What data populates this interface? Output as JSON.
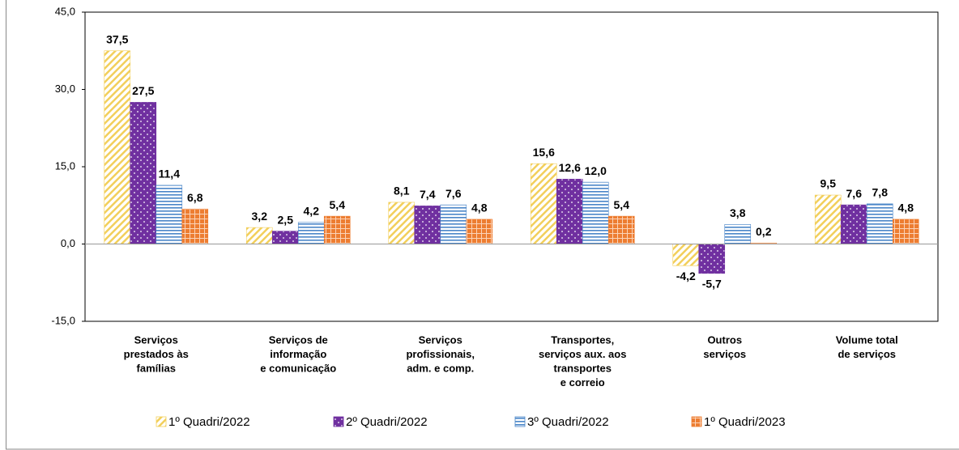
{
  "chart_data": {
    "type": "bar",
    "categories": [
      [
        "Serviços",
        "prestados às",
        "famílias"
      ],
      [
        "Serviços de",
        "informação",
        "e comunicação"
      ],
      [
        "Serviços",
        "profissionais,",
        "adm. e comp."
      ],
      [
        "Transportes,",
        "serviços aux. aos",
        "transportes",
        "e correio"
      ],
      [
        "Outros",
        "serviços"
      ],
      [
        "Volume total",
        "de serviços"
      ]
    ],
    "series": [
      {
        "name": "1º Quadri/2022",
        "color": "#f2cf5b",
        "values": [
          37.5,
          3.2,
          8.1,
          15.6,
          -4.2,
          9.5
        ],
        "value_labels": [
          "37,5",
          "3,2",
          "8,1",
          "15,6",
          "-4,2",
          "9,5"
        ]
      },
      {
        "name": "2º Quadri/2022",
        "color": "#7030a0",
        "values": [
          27.5,
          2.5,
          7.4,
          12.6,
          -5.7,
          7.6
        ],
        "value_labels": [
          "27,5",
          "2,5",
          "7,4",
          "12,6",
          "-5,7",
          "7,6"
        ]
      },
      {
        "name": "3º Quadri/2022",
        "color": "#4a86c8",
        "values": [
          11.4,
          4.2,
          7.6,
          12.0,
          3.8,
          7.8
        ],
        "value_labels": [
          "11,4",
          "4,2",
          "7,6",
          "12,0",
          "3,8",
          "7,8"
        ]
      },
      {
        "name": "1º Quadri/2023",
        "color": "#ed7d31",
        "values": [
          6.8,
          5.4,
          4.8,
          5.4,
          0.2,
          4.8
        ],
        "value_labels": [
          "6,8",
          "5,4",
          "4,8",
          "5,4",
          "0,2",
          "4,8"
        ]
      }
    ],
    "ylim": [
      -15,
      45
    ],
    "yticks": [
      {
        "value": -15,
        "label": "-15,0"
      },
      {
        "value": 0,
        "label": "0,0"
      },
      {
        "value": 15,
        "label": "15,0"
      },
      {
        "value": 30,
        "label": "30,0"
      },
      {
        "value": 45,
        "label": "45,0"
      }
    ],
    "grid": false,
    "legend": "bottom"
  }
}
